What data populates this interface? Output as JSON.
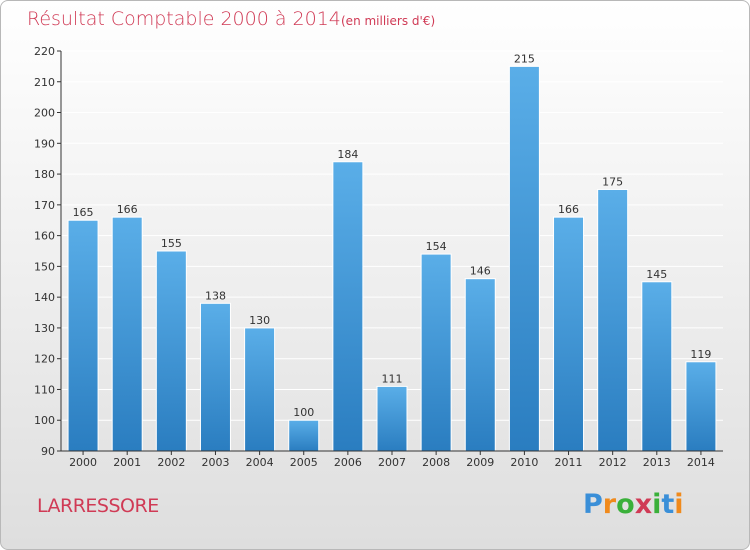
{
  "colors": {
    "accent": "#d03a55",
    "bar_top": "#5aaee8",
    "bar_bottom": "#2a7dc0",
    "logo": [
      "#3a8fd8",
      "#f08a1c",
      "#3ab03a",
      "#d03a55",
      "#3ab03a",
      "#3a8fd8",
      "#f08a1c"
    ]
  },
  "place": "LARRESSORE",
  "logo_text": "Proxiti",
  "chart_data": {
    "type": "bar",
    "title": "Résultat Comptable 2000 à 2014",
    "subtitle": "(en milliers d'€)",
    "xlabel": "",
    "ylabel": "",
    "categories": [
      "2000",
      "2001",
      "2002",
      "2003",
      "2004",
      "2005",
      "2006",
      "2007",
      "2008",
      "2009",
      "2010",
      "2011",
      "2012",
      "2013",
      "2014"
    ],
    "values": [
      165,
      166,
      155,
      138,
      130,
      100,
      184,
      111,
      154,
      146,
      215,
      166,
      175,
      145,
      119
    ],
    "ylim": [
      90,
      220
    ],
    "yticks": [
      90,
      100,
      110,
      120,
      130,
      140,
      150,
      160,
      170,
      180,
      190,
      200,
      210,
      220
    ],
    "grid": true
  }
}
